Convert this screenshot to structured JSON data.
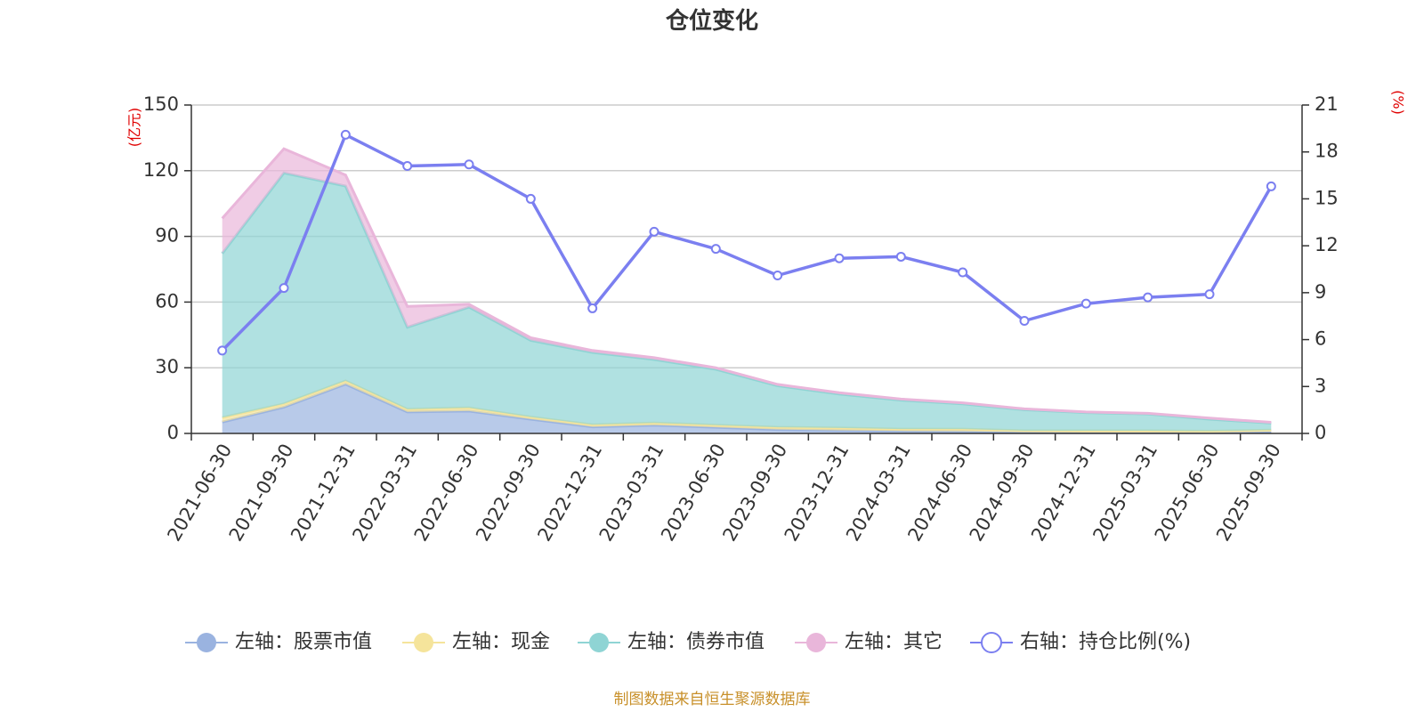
{
  "chart_data": {
    "type": "area",
    "title": "仓位变化",
    "source": "制图数据来自恒生聚源数据库",
    "x": [
      "2021-06-30",
      "2021-09-30",
      "2021-12-31",
      "2022-03-31",
      "2022-06-30",
      "2022-09-30",
      "2022-12-31",
      "2023-03-31",
      "2023-06-30",
      "2023-09-30",
      "2023-12-31",
      "2024-03-31",
      "2024-06-30",
      "2024-09-30",
      "2024-12-31",
      "2025-03-31",
      "2025-06-30",
      "2025-09-30"
    ],
    "left_axis": {
      "unit": "(亿元)",
      "range": [
        0,
        150
      ],
      "ticks": [
        0,
        30,
        60,
        90,
        120,
        150
      ]
    },
    "right_axis": {
      "unit": "(%)",
      "range": [
        0,
        21
      ],
      "ticks": [
        0,
        3,
        6,
        9,
        12,
        15,
        18,
        21
      ]
    },
    "grid": true,
    "legend_position": "bottom",
    "series": [
      {
        "name": "左轴：股票市值",
        "axis": "left",
        "stacked": true,
        "color": "#9ab3e0",
        "values": [
          5.2,
          12.0,
          22.5,
          9.8,
          10.2,
          6.5,
          3.0,
          3.8,
          2.8,
          1.8,
          1.4,
          1.1,
          0.9,
          0.6,
          0.4,
          0.4,
          0.5,
          0.8
        ]
      },
      {
        "name": "左轴：现金",
        "axis": "left",
        "stacked": true,
        "color": "#f5e49b",
        "values": [
          2.0,
          1.5,
          1.5,
          1.2,
          1.5,
          1.0,
          1.0,
          1.0,
          1.0,
          1.0,
          1.1,
          0.9,
          1.1,
          0.6,
          0.8,
          0.8,
          0.5,
          0.7
        ]
      },
      {
        "name": "左轴：债券市值",
        "axis": "left",
        "stacked": true,
        "color": "#8fd4d4",
        "values": [
          75.0,
          105.5,
          89.0,
          37.5,
          46.0,
          35.0,
          33.0,
          29.0,
          25.5,
          19.0,
          15.5,
          13.2,
          11.5,
          9.6,
          8.3,
          7.7,
          5.5,
          3.2
        ]
      },
      {
        "name": "左轴：其它",
        "axis": "left",
        "stacked": true,
        "color": "#e9b6da",
        "values": [
          16.0,
          11.0,
          5.0,
          9.5,
          1.3,
          1.2,
          0.9,
          0.8,
          0.7,
          0.6,
          0.6,
          0.5,
          0.5,
          0.4,
          0.3,
          0.3,
          0.5,
          0.4
        ]
      },
      {
        "name": "右轴：持仓比例(%)",
        "axis": "right",
        "stacked": false,
        "color": "#7b7ff0",
        "values": [
          5.3,
          9.3,
          19.1,
          17.1,
          17.2,
          15.0,
          8.0,
          12.9,
          11.8,
          10.1,
          11.2,
          11.3,
          10.3,
          7.2,
          8.3,
          8.7,
          8.9,
          15.8
        ]
      }
    ]
  }
}
